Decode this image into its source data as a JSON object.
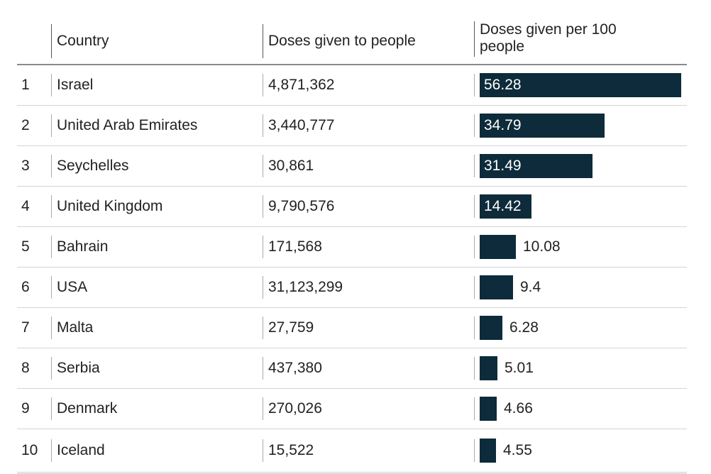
{
  "headers": {
    "rank": "",
    "country": "Country",
    "doses": "Doses given to people",
    "per100_line1": "Doses given per 100",
    "per100_line2": "people"
  },
  "colors": {
    "bar": "#0d2b3a",
    "inside_label": "#ffffff",
    "outside_label": "#222222"
  },
  "chart_data": {
    "type": "bar",
    "orientation": "horizontal",
    "title": "",
    "xlabel": "Doses given per 100 people",
    "ylabel": "",
    "xlim": [
      0,
      56.28
    ],
    "categories": [
      "Israel",
      "United Arab Emirates",
      "Seychelles",
      "United Kingdom",
      "Bahrain",
      "USA",
      "Malta",
      "Serbia",
      "Denmark",
      "Iceland"
    ],
    "values": [
      56.28,
      34.79,
      31.49,
      14.42,
      10.08,
      9.4,
      6.28,
      5.01,
      4.66,
      4.55
    ],
    "value_labels": [
      "56.28",
      "34.79",
      "31.49",
      "14.42",
      "10.08",
      "9.4",
      "6.28",
      "5.01",
      "4.66",
      "4.55"
    ],
    "ranks": [
      "1",
      "2",
      "3",
      "4",
      "5",
      "6",
      "7",
      "8",
      "9",
      "10"
    ],
    "doses_given": [
      "4,871,362",
      "3,440,777",
      "30,861",
      "9,790,576",
      "171,568",
      "31,123,299",
      "27,759",
      "437,380",
      "270,026",
      "15,522"
    ]
  }
}
